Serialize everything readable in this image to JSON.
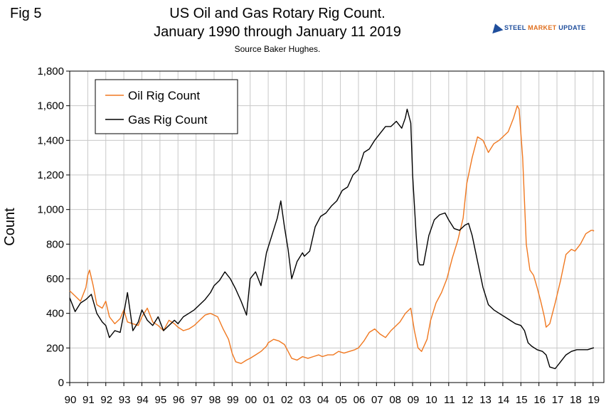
{
  "header": {
    "fig_label": "Fig 5",
    "title_line1": "US Oil and Gas Rotary Rig Count.",
    "title_line2": "January 1990 through January 11 2019",
    "source": "Source Baker Hughes."
  },
  "logo": {
    "part1": "STEEL",
    "part2": "MARKET",
    "part3": "UPDATE",
    "colors": {
      "blue": "#1f4e9c",
      "orange": "#e07020"
    }
  },
  "chart_data": {
    "type": "line",
    "title": "US Oil and Gas Rotary Rig Count. January 1990 through January 11 2019",
    "xlabel": "",
    "ylabel": "Count",
    "ylim": [
      0,
      1800
    ],
    "xlim": [
      1990,
      2019.6
    ],
    "yticks": [
      0,
      200,
      400,
      600,
      800,
      1000,
      1200,
      1400,
      1600,
      1800
    ],
    "ytick_labels": [
      "0",
      "200",
      "400",
      "600",
      "800",
      "1,000",
      "1,200",
      "1,400",
      "1,600",
      "1,800"
    ],
    "xtick_labels": [
      "90",
      "91",
      "92",
      "93",
      "94",
      "95",
      "96",
      "97",
      "98",
      "99",
      "00",
      "01",
      "02",
      "03",
      "04",
      "05",
      "06",
      "07",
      "08",
      "09",
      "10",
      "11",
      "12",
      "13",
      "14",
      "15",
      "16",
      "17",
      "18",
      "19"
    ],
    "grid": true,
    "legend_position": "top-left",
    "series": [
      {
        "name": "Oil Rig Count",
        "color": "#f07820",
        "x": [
          1990.0,
          1990.3,
          1990.6,
          1990.9,
          1991.0,
          1991.1,
          1991.3,
          1991.5,
          1991.8,
          1992.0,
          1992.2,
          1992.5,
          1992.8,
          1993.0,
          1993.2,
          1993.5,
          1993.8,
          1994.0,
          1994.3,
          1994.6,
          1994.9,
          1995.2,
          1995.5,
          1995.8,
          1996.0,
          1996.3,
          1996.6,
          1996.9,
          1997.2,
          1997.5,
          1997.8,
          1998.0,
          1998.2,
          1998.5,
          1998.8,
          1999.0,
          1999.2,
          1999.5,
          1999.8,
          2000.0,
          2000.3,
          2000.6,
          2000.9,
          2001.0,
          2001.3,
          2001.6,
          2001.9,
          2002.0,
          2002.3,
          2002.6,
          2002.9,
          2003.2,
          2003.5,
          2003.8,
          2004.0,
          2004.3,
          2004.6,
          2004.9,
          2005.2,
          2005.5,
          2005.8,
          2006.0,
          2006.3,
          2006.6,
          2006.9,
          2007.2,
          2007.5,
          2007.8,
          2008.0,
          2008.3,
          2008.6,
          2008.9,
          2009.1,
          2009.3,
          2009.5,
          2009.8,
          2010.0,
          2010.3,
          2010.6,
          2010.9,
          2011.2,
          2011.5,
          2011.8,
          2012.0,
          2012.3,
          2012.6,
          2012.9,
          2013.2,
          2013.5,
          2013.8,
          2014.0,
          2014.3,
          2014.6,
          2014.8,
          2014.9,
          2015.1,
          2015.3,
          2015.5,
          2015.7,
          2015.9,
          2016.1,
          2016.3,
          2016.4,
          2016.6,
          2016.9,
          2017.2,
          2017.5,
          2017.8,
          2018.0,
          2018.3,
          2018.6,
          2018.9,
          2019.0,
          2019.05
        ],
        "y": [
          530,
          500,
          470,
          550,
          620,
          650,
          560,
          450,
          430,
          470,
          380,
          340,
          370,
          420,
          350,
          340,
          330,
          380,
          430,
          350,
          330,
          300,
          360,
          340,
          320,
          300,
          310,
          330,
          360,
          390,
          400,
          390,
          380,
          310,
          250,
          170,
          120,
          110,
          130,
          140,
          160,
          180,
          210,
          230,
          250,
          240,
          220,
          200,
          140,
          130,
          150,
          140,
          150,
          160,
          150,
          160,
          160,
          180,
          170,
          180,
          190,
          200,
          240,
          290,
          310,
          280,
          260,
          300,
          320,
          350,
          400,
          430,
          300,
          200,
          180,
          250,
          360,
          460,
          520,
          600,
          720,
          820,
          950,
          1150,
          1300,
          1420,
          1400,
          1330,
          1380,
          1400,
          1420,
          1450,
          1530,
          1600,
          1580,
          1300,
          800,
          650,
          620,
          550,
          470,
          380,
          320,
          340,
          460,
          590,
          740,
          770,
          760,
          800,
          860,
          880,
          880,
          875
        ]
      },
      {
        "name": "Gas Rig Count",
        "color": "#000000",
        "x": [
          1990.0,
          1990.3,
          1990.6,
          1990.9,
          1991.2,
          1991.5,
          1991.8,
          1992.0,
          1992.2,
          1992.5,
          1992.8,
          1993.0,
          1993.2,
          1993.5,
          1993.8,
          1994.0,
          1994.3,
          1994.6,
          1994.9,
          1995.2,
          1995.5,
          1995.8,
          1996.0,
          1996.3,
          1996.6,
          1996.9,
          1997.2,
          1997.5,
          1997.8,
          1998.0,
          1998.3,
          1998.6,
          1998.9,
          1999.2,
          1999.5,
          1999.8,
          2000.0,
          2000.3,
          2000.6,
          2000.9,
          2001.2,
          2001.5,
          2001.7,
          2001.9,
          2002.1,
          2002.3,
          2002.6,
          2002.9,
          2003.0,
          2003.3,
          2003.6,
          2003.9,
          2004.2,
          2004.5,
          2004.8,
          2005.1,
          2005.4,
          2005.7,
          2006.0,
          2006.3,
          2006.6,
          2006.9,
          2007.2,
          2007.5,
          2007.8,
          2008.1,
          2008.4,
          2008.6,
          2008.7,
          2008.9,
          2009.0,
          2009.2,
          2009.3,
          2009.4,
          2009.6,
          2009.9,
          2010.2,
          2010.5,
          2010.8,
          2011.0,
          2011.3,
          2011.6,
          2011.9,
          2012.1,
          2012.3,
          2012.6,
          2012.9,
          2013.2,
          2013.5,
          2013.8,
          2014.1,
          2014.4,
          2014.7,
          2015.0,
          2015.2,
          2015.4,
          2015.6,
          2015.9,
          2016.2,
          2016.4,
          2016.6,
          2016.9,
          2017.2,
          2017.5,
          2017.8,
          2018.1,
          2018.4,
          2018.7,
          2019.0,
          2019.05
        ],
        "y": [
          490,
          410,
          460,
          480,
          510,
          400,
          350,
          330,
          260,
          300,
          290,
          400,
          520,
          300,
          350,
          420,
          360,
          330,
          380,
          300,
          330,
          360,
          340,
          380,
          400,
          420,
          450,
          480,
          520,
          560,
          590,
          640,
          600,
          540,
          470,
          390,
          600,
          640,
          560,
          750,
          850,
          950,
          1050,
          900,
          770,
          600,
          700,
          750,
          730,
          760,
          900,
          960,
          980,
          1020,
          1050,
          1110,
          1130,
          1200,
          1230,
          1330,
          1350,
          1400,
          1440,
          1480,
          1480,
          1510,
          1470,
          1530,
          1580,
          1500,
          1200,
          850,
          700,
          680,
          680,
          850,
          940,
          970,
          980,
          940,
          890,
          880,
          910,
          920,
          850,
          700,
          550,
          450,
          420,
          400,
          380,
          360,
          340,
          330,
          300,
          230,
          210,
          190,
          180,
          160,
          90,
          80,
          120,
          160,
          180,
          190,
          190,
          190,
          200,
          200
        ]
      }
    ]
  }
}
